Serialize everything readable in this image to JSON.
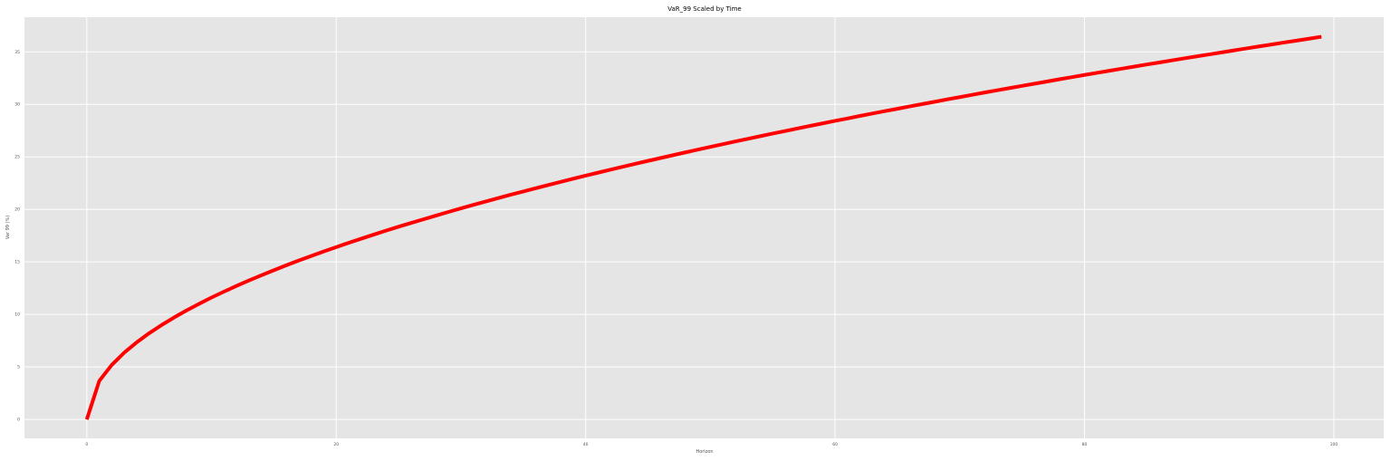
{
  "chart_data": {
    "type": "line",
    "title": "VaR_99 Scaled by Time",
    "xlabel": "Horizon",
    "ylabel": "Var 99 (%)",
    "xlim": [
      -5,
      104
    ],
    "ylim": [
      -1.8,
      38.3
    ],
    "xticks": [
      0,
      20,
      40,
      60,
      80,
      100
    ],
    "yticks": [
      0,
      5,
      10,
      15,
      20,
      25,
      30,
      35
    ],
    "grid": true,
    "background_color": "#e5e5e5",
    "grid_color": "#ffffff",
    "series": [
      {
        "color": "#ff0000",
        "formula_note": "",
        "x": [
          0,
          1,
          2,
          3,
          4,
          5,
          6,
          7,
          8,
          9,
          10,
          11,
          12,
          13,
          14,
          15,
          16,
          17,
          18,
          19,
          20,
          21,
          22,
          23,
          24,
          25,
          26,
          27,
          28,
          29,
          30,
          31,
          32,
          33,
          34,
          35,
          36,
          37,
          38,
          39,
          40,
          41,
          42,
          43,
          44,
          45,
          46,
          47,
          48,
          49,
          50,
          51,
          52,
          53,
          54,
          55,
          56,
          57,
          58,
          59,
          60,
          61,
          62,
          63,
          64,
          65,
          66,
          67,
          68,
          69,
          70,
          71,
          72,
          73,
          74,
          75,
          76,
          77,
          78,
          79,
          80,
          81,
          82,
          83,
          84,
          85,
          86,
          87,
          88,
          89,
          90,
          91,
          92,
          93,
          94,
          95,
          96,
          97,
          98,
          99
        ],
        "y": [
          0,
          3.67,
          5.19,
          6.36,
          7.34,
          8.21,
          8.99,
          9.71,
          10.38,
          11.01,
          11.61,
          12.17,
          12.71,
          13.23,
          13.73,
          14.21,
          14.68,
          15.13,
          15.57,
          16.0,
          16.41,
          16.82,
          17.21,
          17.6,
          17.98,
          18.35,
          18.71,
          19.06,
          19.41,
          19.76,
          20.1,
          20.43,
          20.76,
          21.08,
          21.4,
          21.71,
          22.02,
          22.32,
          22.62,
          22.92,
          23.21,
          23.5,
          23.79,
          24.07,
          24.35,
          24.62,
          24.89,
          25.16,
          25.43,
          25.69,
          25.95,
          26.21,
          26.47,
          26.72,
          26.97,
          27.22,
          27.46,
          27.71,
          27.95,
          28.19,
          28.43,
          28.66,
          28.9,
          29.13,
          29.36,
          29.58,
          29.81,
          30.03,
          30.25,
          30.48,
          30.69,
          30.91,
          31.13,
          31.34,
          31.55,
          31.76,
          31.97,
          32.18,
          32.39,
          32.59,
          32.8,
          33.0,
          33.2,
          33.4,
          33.6,
          33.8,
          33.99,
          34.19,
          34.38,
          34.57,
          34.76,
          34.95,
          35.14,
          35.33,
          35.52,
          35.7,
          35.89,
          36.07,
          36.25,
          36.44
        ]
      }
    ]
  }
}
